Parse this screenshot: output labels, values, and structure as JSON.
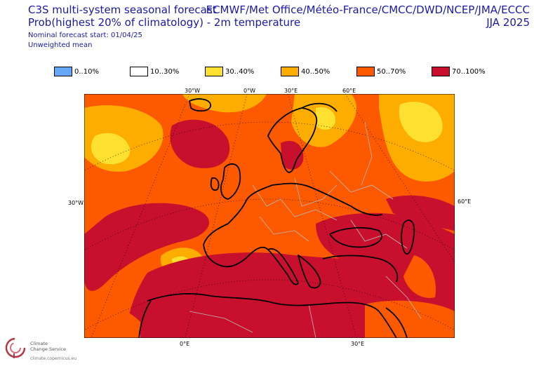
{
  "title_left": {
    "line1": "C3S multi-system seasonal forecast",
    "line2": "Prob(highest 20% of climatology) - 2m temperature",
    "line3": "Nominal forecast start: 01/04/25",
    "line4": "Unweighted mean"
  },
  "title_right": {
    "line1": "ECMWF/Met Office/Météo-France/CMCC/DWD/NCEP/JMA/ECCC",
    "line2": "JJA 2025"
  },
  "legend": [
    {
      "label": "0..10%",
      "color": "#66a8f5"
    },
    {
      "label": "10..30%",
      "color": "#ffffff"
    },
    {
      "label": "30..40%",
      "color": "#fde030"
    },
    {
      "label": "40..50%",
      "color": "#fdac00"
    },
    {
      "label": "50..70%",
      "color": "#fd5a00"
    },
    {
      "label": "70..100%",
      "color": "#c8102e"
    }
  ],
  "axis_labels": {
    "top": [
      "30°W",
      "0°W",
      "30°E",
      "60°E"
    ],
    "left": "30°W",
    "right": "60°E",
    "bottom": [
      "0°E",
      "30°E"
    ]
  },
  "logo": {
    "name_line1": "Climate",
    "name_line2": "Change Service",
    "url": "climate.copernicus.eu"
  }
}
